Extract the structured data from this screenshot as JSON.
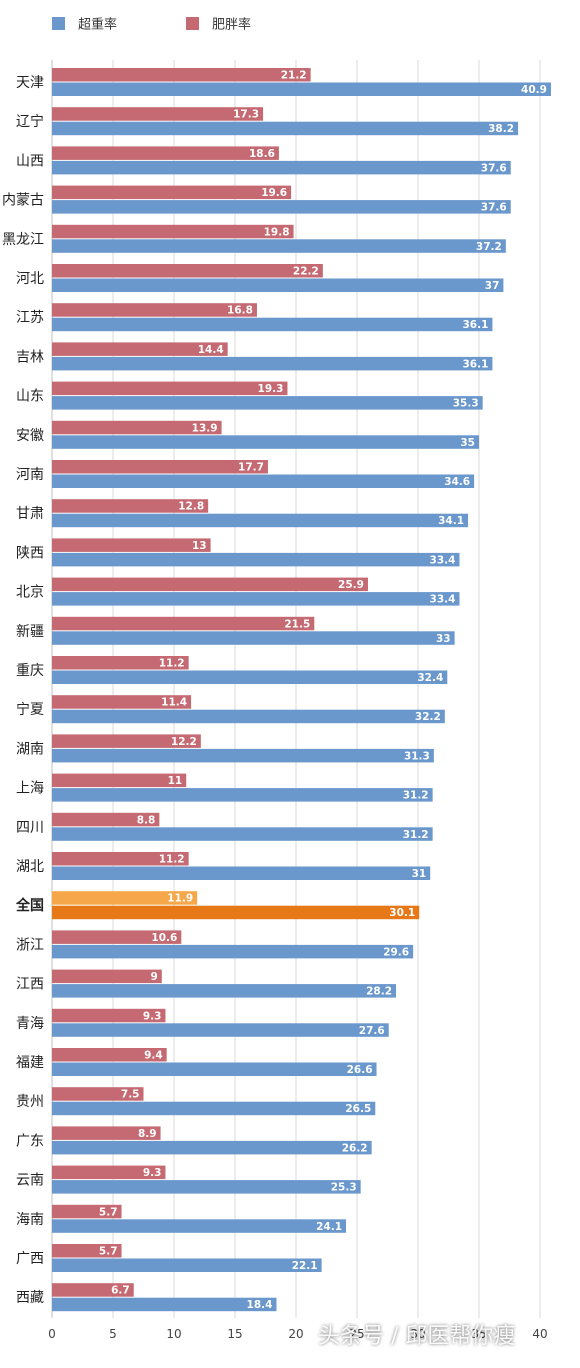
{
  "chart_data": {
    "type": "bar",
    "orientation": "horizontal",
    "legend": {
      "position": "top-left"
    },
    "series": [
      {
        "name": "超重率",
        "color": "#6a97cc"
      },
      {
        "name": "肥胖率",
        "color": "#c56a72"
      }
    ],
    "highlight": {
      "category": "全国",
      "overweight_color": "#e67817",
      "obese_color": "#f5a74a"
    },
    "categories": [
      "天津",
      "辽宁",
      "山西",
      "内蒙古",
      "黑龙江",
      "河北",
      "江苏",
      "吉林",
      "山东",
      "安徽",
      "河南",
      "甘肃",
      "陕西",
      "北京",
      "新疆",
      "重庆",
      "宁夏",
      "湖南",
      "上海",
      "四川",
      "湖北",
      "全国",
      "浙江",
      "江西",
      "青海",
      "福建",
      "贵州",
      "广东",
      "云南",
      "海南",
      "广西",
      "西藏"
    ],
    "overweight": [
      40.9,
      38.2,
      37.6,
      37.6,
      37.2,
      37,
      36.1,
      36.1,
      35.3,
      35,
      34.6,
      34.1,
      33.4,
      33.4,
      33,
      32.4,
      32.2,
      31.3,
      31.2,
      31.2,
      31,
      30.1,
      29.6,
      28.2,
      27.6,
      26.6,
      26.5,
      26.2,
      25.3,
      24.1,
      22.1,
      18.4
    ],
    "obese": [
      21.2,
      17.3,
      18.6,
      19.6,
      19.8,
      22.2,
      16.8,
      14.4,
      19.3,
      13.9,
      17.7,
      12.8,
      13,
      25.9,
      21.5,
      11.2,
      11.4,
      12.2,
      11,
      8.8,
      11.2,
      11.9,
      10.6,
      9,
      9.3,
      9.4,
      7.5,
      8.9,
      9.3,
      5.7,
      5.7,
      6.7
    ],
    "xticks": [
      "0",
      "5",
      "10",
      "15",
      "20",
      "25",
      "30",
      "35",
      "40"
    ],
    "xlim": [
      0,
      42
    ],
    "grid": "vertical"
  },
  "watermark": {
    "text": "头条号 / 邱医帮你瘦"
  }
}
